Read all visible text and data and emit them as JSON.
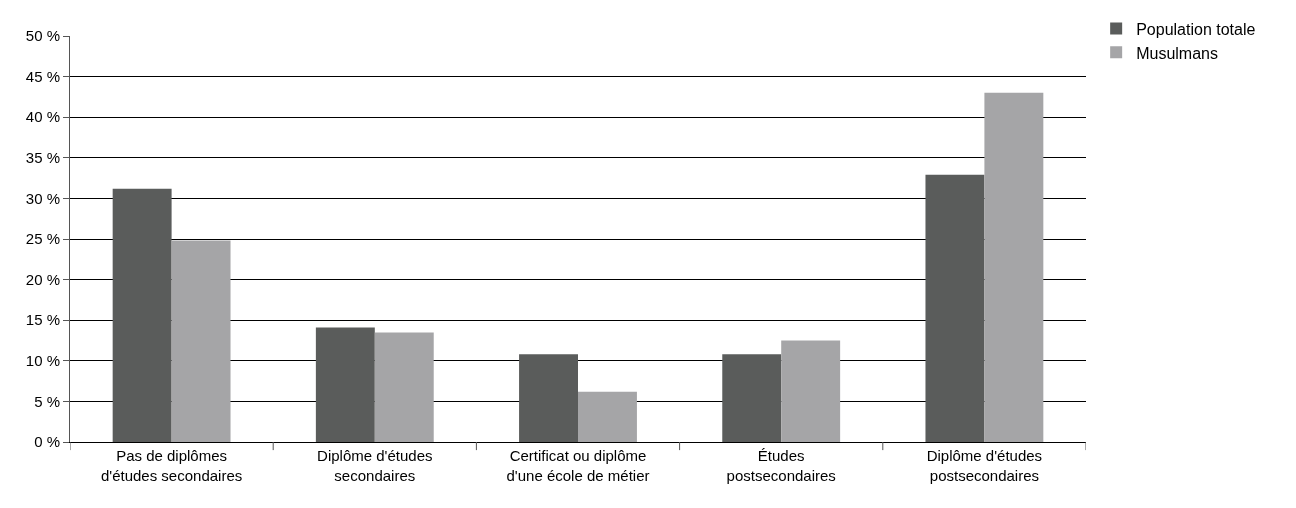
{
  "chart_data": {
    "type": "bar",
    "categories": [
      "Pas de diplômes d'études secondaires",
      "Diplôme d'études secondaires",
      "Certificat ou diplôme d'une école de métier",
      "Études postsecondaires",
      "Diplôme d'études postsecondaires"
    ],
    "series": [
      {
        "name": "Population totale",
        "color": "#5a5c5b",
        "values": [
          31.2,
          14.1,
          10.8,
          10.8,
          32.9
        ]
      },
      {
        "name": "Musulmans",
        "color": "#a5a5a7",
        "values": [
          24.8,
          13.5,
          6.2,
          12.5,
          43.0
        ]
      }
    ],
    "ylim": [
      0,
      50
    ],
    "yticks": [
      {
        "value": 0,
        "label": "0 %"
      },
      {
        "value": 5,
        "label": "5 %"
      },
      {
        "value": 10,
        "label": "10 %"
      },
      {
        "value": 15,
        "label": "15 %"
      },
      {
        "value": 20,
        "label": "20 %"
      },
      {
        "value": 25,
        "label": "25 %"
      },
      {
        "value": 30,
        "label": "30 %"
      },
      {
        "value": 35,
        "label": "35 %"
      },
      {
        "value": 40,
        "label": "40 %"
      },
      {
        "value": 45,
        "label": "45 %"
      },
      {
        "value": 50,
        "label": "50 %"
      }
    ],
    "grid": "y",
    "legend": "top right"
  }
}
